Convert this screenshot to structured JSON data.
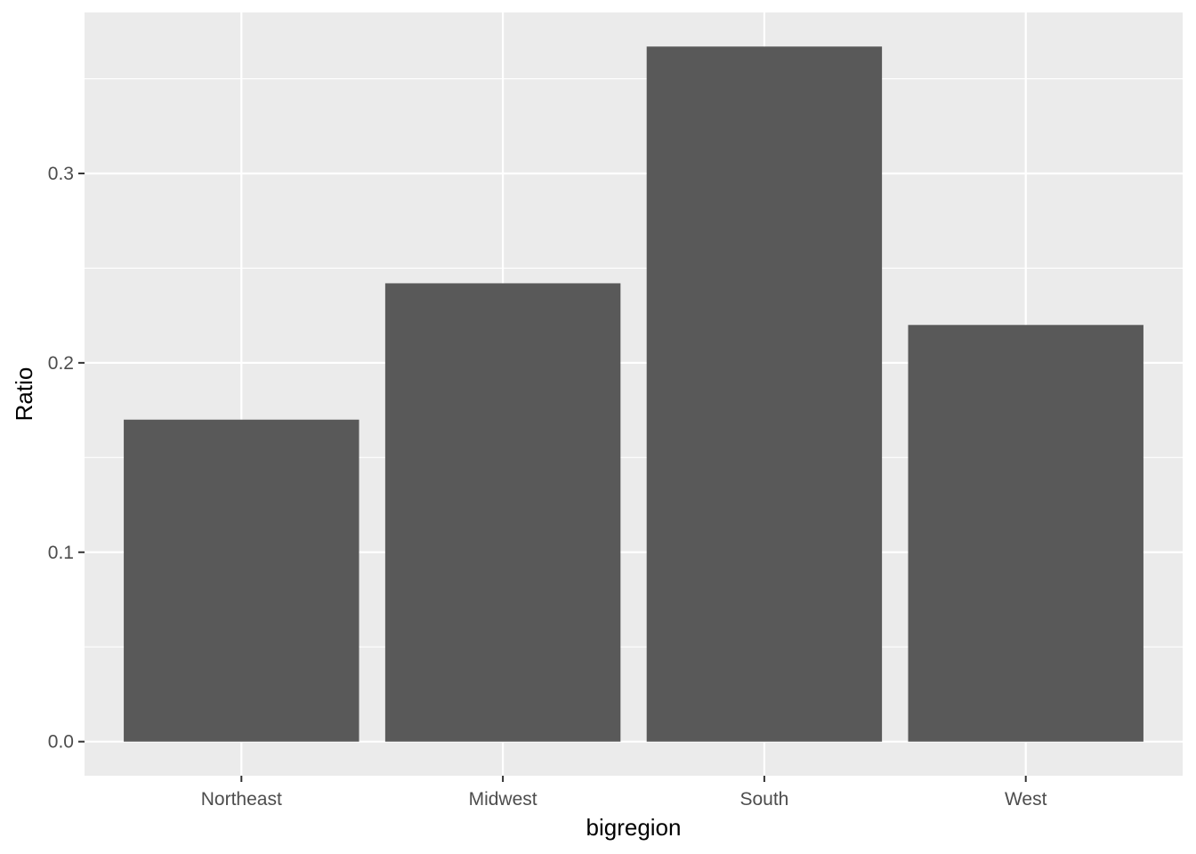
{
  "chart_data": {
    "type": "bar",
    "categories": [
      "Northeast",
      "Midwest",
      "South",
      "West"
    ],
    "values": [
      0.17,
      0.242,
      0.367,
      0.22
    ],
    "title": "",
    "xlabel": "bigregion",
    "ylabel": "Ratio",
    "ylim": [
      -0.018,
      0.385
    ],
    "yticks": [
      0.0,
      0.1,
      0.2,
      0.3
    ],
    "ytick_labels": [
      "0.0",
      "0.1",
      "0.2",
      "0.3"
    ],
    "grid": true,
    "colors": {
      "panel_background": "#ebebeb",
      "grid_line": "#ffffff",
      "bar_fill": "#595959",
      "tick_mark": "#333333",
      "tick_text": "#4d4d4d"
    }
  }
}
